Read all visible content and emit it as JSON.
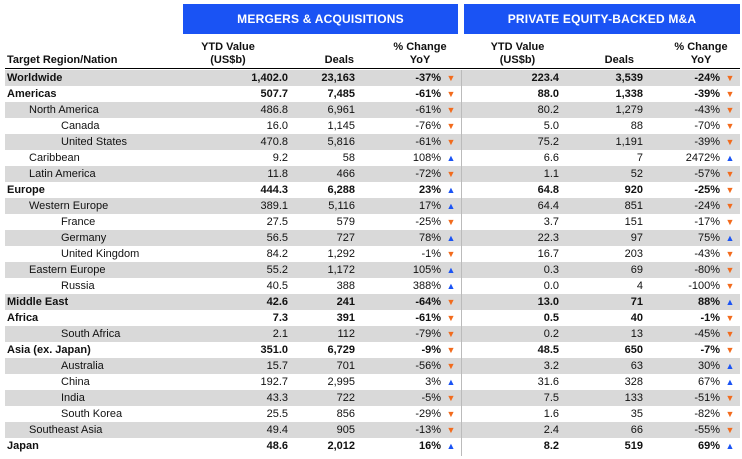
{
  "headers": {
    "ma_title": "MERGERS & ACQUISITIONS",
    "pe_title": "PRIVATE EQUITY-BACKED M&A",
    "region": "Target Region/Nation",
    "ytd_line1": "YTD Value",
    "ytd_line2": "(US$b)",
    "deals": "Deals",
    "change_line1": "% Change",
    "change_line2": "YoY"
  },
  "rows": [
    {
      "name": "Worldwide",
      "level": 0,
      "bold": true,
      "ma_value": "1,402.0",
      "ma_deals": "23,163",
      "ma_change": "-37%",
      "ma_dir": "down",
      "pe_value": "223.4",
      "pe_deals": "3,539",
      "pe_change": "-24%",
      "pe_dir": "down"
    },
    {
      "name": "Americas",
      "level": 0,
      "bold": true,
      "ma_value": "507.7",
      "ma_deals": "7,485",
      "ma_change": "-61%",
      "ma_dir": "down",
      "pe_value": "88.0",
      "pe_deals": "1,338",
      "pe_change": "-39%",
      "pe_dir": "down"
    },
    {
      "name": "North America",
      "level": 1,
      "bold": false,
      "ma_value": "486.8",
      "ma_deals": "6,961",
      "ma_change": "-61%",
      "ma_dir": "down",
      "pe_value": "80.2",
      "pe_deals": "1,279",
      "pe_change": "-43%",
      "pe_dir": "down"
    },
    {
      "name": "Canada",
      "level": 2,
      "bold": false,
      "ma_value": "16.0",
      "ma_deals": "1,145",
      "ma_change": "-76%",
      "ma_dir": "down",
      "pe_value": "5.0",
      "pe_deals": "88",
      "pe_change": "-70%",
      "pe_dir": "down"
    },
    {
      "name": "United States",
      "level": 2,
      "bold": false,
      "ma_value": "470.8",
      "ma_deals": "5,816",
      "ma_change": "-61%",
      "ma_dir": "down",
      "pe_value": "75.2",
      "pe_deals": "1,191",
      "pe_change": "-39%",
      "pe_dir": "down"
    },
    {
      "name": "Caribbean",
      "level": 1,
      "bold": false,
      "ma_value": "9.2",
      "ma_deals": "58",
      "ma_change": "108%",
      "ma_dir": "up",
      "pe_value": "6.6",
      "pe_deals": "7",
      "pe_change": "2472%",
      "pe_dir": "up"
    },
    {
      "name": "Latin America",
      "level": 1,
      "bold": false,
      "ma_value": "11.8",
      "ma_deals": "466",
      "ma_change": "-72%",
      "ma_dir": "down",
      "pe_value": "1.1",
      "pe_deals": "52",
      "pe_change": "-57%",
      "pe_dir": "down"
    },
    {
      "name": "Europe",
      "level": 0,
      "bold": true,
      "ma_value": "444.3",
      "ma_deals": "6,288",
      "ma_change": "23%",
      "ma_dir": "up",
      "pe_value": "64.8",
      "pe_deals": "920",
      "pe_change": "-25%",
      "pe_dir": "down"
    },
    {
      "name": "Western Europe",
      "level": 1,
      "bold": false,
      "ma_value": "389.1",
      "ma_deals": "5,116",
      "ma_change": "17%",
      "ma_dir": "up",
      "pe_value": "64.4",
      "pe_deals": "851",
      "pe_change": "-24%",
      "pe_dir": "down"
    },
    {
      "name": "France",
      "level": 2,
      "bold": false,
      "ma_value": "27.5",
      "ma_deals": "579",
      "ma_change": "-25%",
      "ma_dir": "down",
      "pe_value": "3.7",
      "pe_deals": "151",
      "pe_change": "-17%",
      "pe_dir": "down"
    },
    {
      "name": "Germany",
      "level": 2,
      "bold": false,
      "ma_value": "56.5",
      "ma_deals": "727",
      "ma_change": "78%",
      "ma_dir": "up",
      "pe_value": "22.3",
      "pe_deals": "97",
      "pe_change": "75%",
      "pe_dir": "up"
    },
    {
      "name": "United Kingdom",
      "level": 2,
      "bold": false,
      "ma_value": "84.2",
      "ma_deals": "1,292",
      "ma_change": "-1%",
      "ma_dir": "down",
      "pe_value": "16.7",
      "pe_deals": "203",
      "pe_change": "-43%",
      "pe_dir": "down"
    },
    {
      "name": "Eastern Europe",
      "level": 1,
      "bold": false,
      "ma_value": "55.2",
      "ma_deals": "1,172",
      "ma_change": "105%",
      "ma_dir": "up",
      "pe_value": "0.3",
      "pe_deals": "69",
      "pe_change": "-80%",
      "pe_dir": "down"
    },
    {
      "name": "Russia",
      "level": 2,
      "bold": false,
      "ma_value": "40.5",
      "ma_deals": "388",
      "ma_change": "388%",
      "ma_dir": "up",
      "pe_value": "0.0",
      "pe_deals": "4",
      "pe_change": "-100%",
      "pe_dir": "down"
    },
    {
      "name": "Middle East",
      "level": 0,
      "bold": true,
      "ma_value": "42.6",
      "ma_deals": "241",
      "ma_change": "-64%",
      "ma_dir": "down",
      "pe_value": "13.0",
      "pe_deals": "71",
      "pe_change": "88%",
      "pe_dir": "up"
    },
    {
      "name": "Africa",
      "level": 0,
      "bold": true,
      "ma_value": "7.3",
      "ma_deals": "391",
      "ma_change": "-61%",
      "ma_dir": "down",
      "pe_value": "0.5",
      "pe_deals": "40",
      "pe_change": "-1%",
      "pe_dir": "down"
    },
    {
      "name": "South Africa",
      "level": 2,
      "bold": false,
      "ma_value": "2.1",
      "ma_deals": "112",
      "ma_change": "-79%",
      "ma_dir": "down",
      "pe_value": "0.2",
      "pe_deals": "13",
      "pe_change": "-45%",
      "pe_dir": "down"
    },
    {
      "name": "Asia (ex. Japan)",
      "level": 0,
      "bold": true,
      "ma_value": "351.0",
      "ma_deals": "6,729",
      "ma_change": "-9%",
      "ma_dir": "down",
      "pe_value": "48.5",
      "pe_deals": "650",
      "pe_change": "-7%",
      "pe_dir": "down"
    },
    {
      "name": "Australia",
      "level": 2,
      "bold": false,
      "ma_value": "15.7",
      "ma_deals": "701",
      "ma_change": "-56%",
      "ma_dir": "down",
      "pe_value": "3.2",
      "pe_deals": "63",
      "pe_change": "30%",
      "pe_dir": "up"
    },
    {
      "name": "China",
      "level": 2,
      "bold": false,
      "ma_value": "192.7",
      "ma_deals": "2,995",
      "ma_change": "3%",
      "ma_dir": "up",
      "pe_value": "31.6",
      "pe_deals": "328",
      "pe_change": "67%",
      "pe_dir": "up"
    },
    {
      "name": "India",
      "level": 2,
      "bold": false,
      "ma_value": "43.3",
      "ma_deals": "722",
      "ma_change": "-5%",
      "ma_dir": "down",
      "pe_value": "7.5",
      "pe_deals": "133",
      "pe_change": "-51%",
      "pe_dir": "down"
    },
    {
      "name": "South Korea",
      "level": 2,
      "bold": false,
      "ma_value": "25.5",
      "ma_deals": "856",
      "ma_change": "-29%",
      "ma_dir": "down",
      "pe_value": "1.6",
      "pe_deals": "35",
      "pe_change": "-82%",
      "pe_dir": "down"
    },
    {
      "name": "Southeast Asia",
      "level": 1,
      "bold": false,
      "ma_value": "49.4",
      "ma_deals": "905",
      "ma_change": "-13%",
      "ma_dir": "down",
      "pe_value": "2.4",
      "pe_deals": "66",
      "pe_change": "-55%",
      "pe_dir": "down"
    },
    {
      "name": "Japan",
      "level": 0,
      "bold": true,
      "ma_value": "48.6",
      "ma_deals": "2,012",
      "ma_change": "16%",
      "ma_dir": "up",
      "pe_value": "8.2",
      "pe_deals": "519",
      "pe_change": "69%",
      "pe_dir": "up"
    }
  ],
  "colors": {
    "band": "#1a53f4",
    "arrow_up": "#1a53f4",
    "arrow_down": "#f26b1d",
    "shade": "#d9d9d9"
  },
  "icons": {
    "up": "triangle-up-icon",
    "down": "triangle-down-icon"
  }
}
